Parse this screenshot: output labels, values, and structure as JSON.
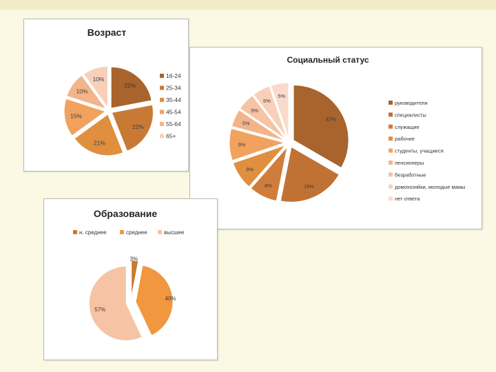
{
  "colors": {
    "page_bg": "#fbf8e3",
    "slice_palette": [
      "#a8642c",
      "#c87a35",
      "#e08f3f",
      "#f1a25e",
      "#f4b48a",
      "#f6c3a4",
      "#f8d0ba",
      "#fadbcb",
      "#fce6dc"
    ]
  },
  "chart_data": [
    {
      "id": "age",
      "type": "pie",
      "exploded": true,
      "title": "Возраст",
      "legend_position": "right",
      "categories": [
        "16-24",
        "25-34",
        "35-44",
        "45-54",
        "55-64",
        "65+"
      ],
      "values": [
        22,
        22,
        21,
        15,
        10,
        10
      ],
      "labels": [
        "22%",
        "22%",
        "21%",
        "15%",
        "10%",
        "10%"
      ],
      "colors": [
        "#a8642c",
        "#c87a35",
        "#e08f3f",
        "#f1a25e",
        "#f4b48a",
        "#f8d0ba"
      ]
    },
    {
      "id": "social",
      "type": "pie",
      "exploded": true,
      "title": "Социальный статус",
      "legend_position": "right",
      "categories": [
        "руководители",
        "специалисты",
        "служащие",
        "рабочие",
        "студенты, учащиеся",
        "пенсионеры",
        "безработные",
        "домохозяйки, молодые мамы",
        "нет ответа"
      ],
      "values": [
        32,
        19,
        8,
        8,
        9,
        5,
        5,
        5,
        5
      ],
      "labels": [
        "32%",
        "19%",
        "8%",
        "8%",
        "9%",
        "5%",
        "5%",
        "5%",
        "5%"
      ],
      "colors": [
        "#a8642c",
        "#c07235",
        "#d07d3b",
        "#e08f3f",
        "#f1a25e",
        "#f4b48a",
        "#f6c3a4",
        "#f8d0ba",
        "#fadbcb"
      ]
    },
    {
      "id": "education",
      "type": "pie",
      "exploded": true,
      "title": "Образование",
      "legend_position": "top",
      "categories": [
        "н. среднее",
        "среднее",
        "высшее"
      ],
      "values": [
        3,
        40,
        57
      ],
      "labels": [
        "3%",
        "40%",
        "57%"
      ],
      "colors": [
        "#c87a35",
        "#f0973f",
        "#f6c3a4"
      ]
    }
  ]
}
